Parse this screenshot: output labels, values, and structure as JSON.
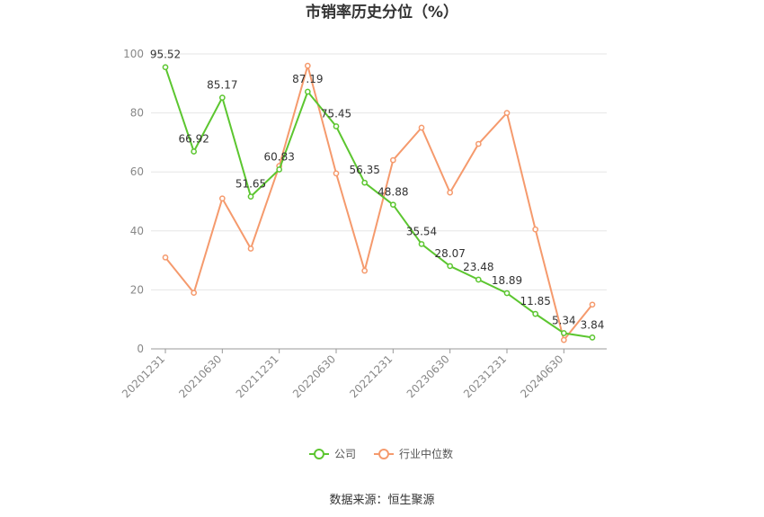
{
  "chart_data": {
    "type": "line",
    "title": "市销率历史分位（%）",
    "xlabel": "",
    "ylabel": "",
    "ylim": [
      0,
      100
    ],
    "yticks": [
      0,
      20,
      40,
      60,
      80,
      100
    ],
    "x": [
      "20201231",
      "20210331",
      "20210630",
      "20210930",
      "20211231",
      "20220331",
      "20220630",
      "20220930",
      "20221231",
      "20230331",
      "20230630",
      "20230930",
      "20231231",
      "20240331",
      "20240630",
      "20240930"
    ],
    "xtick_labels": [
      "20201231",
      "20210630",
      "20211231",
      "20220630",
      "20221231",
      "20230630",
      "20231231",
      "20240630"
    ],
    "series": [
      {
        "name": "公司",
        "color": "#5cc630",
        "show_labels": true,
        "values": [
          95.52,
          66.92,
          85.17,
          51.65,
          60.83,
          87.19,
          75.45,
          56.35,
          48.88,
          35.54,
          28.07,
          23.48,
          18.89,
          11.85,
          5.34,
          3.84
        ]
      },
      {
        "name": "行业中位数",
        "color": "#f59a6d",
        "show_labels": false,
        "values": [
          31,
          19,
          51,
          34,
          62,
          96,
          59.5,
          26.5,
          64,
          75,
          53,
          69.5,
          80,
          40.5,
          3,
          15
        ]
      }
    ],
    "grid": true,
    "legend_position": "bottom"
  },
  "source": "数据来源：恒生聚源"
}
